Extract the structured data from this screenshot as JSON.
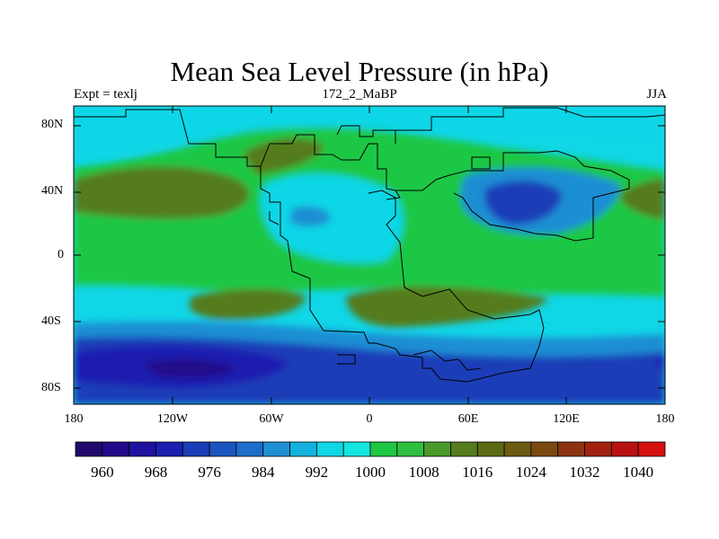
{
  "title": "Mean Sea Level Pressure (in hPa)",
  "left_string": "Expt = texlj",
  "center_string": "172_2_MaBP",
  "right_string": "JJA",
  "y_ticks": [
    "80N",
    "40N",
    "0",
    "40S",
    "80S"
  ],
  "x_ticks": [
    "180",
    "120W",
    "60W",
    "0",
    "60E",
    "120E",
    "180"
  ],
  "colorbar": {
    "labels": [
      "960",
      "968",
      "976",
      "984",
      "992",
      "1000",
      "1008",
      "1016",
      "1024",
      "1032",
      "1040"
    ],
    "colors": [
      "#21086b",
      "#22098a",
      "#1e12a0",
      "#1a1fb0",
      "#1b3db8",
      "#1a55c0",
      "#1c6ec8",
      "#1f8ed3",
      "#13b2de",
      "#10d6e6",
      "#12e6e1",
      "#1fc744",
      "#2fc040",
      "#4a9a2a",
      "#557c1f",
      "#5b6b14",
      "#6a5a12",
      "#7a4a0f",
      "#8c3410",
      "#a2200e",
      "#b81210",
      "#d60f0f"
    ]
  },
  "map_colors": {
    "deep_low": "#1a1fb0",
    "low": "#1b3db8",
    "mid_low": "#1f8ed3",
    "cyan": "#10d6e6",
    "pale_cyan": "#12e6e1",
    "green": "#1fc744",
    "olive": "#557c1f",
    "ocean_border": "#000000"
  }
}
